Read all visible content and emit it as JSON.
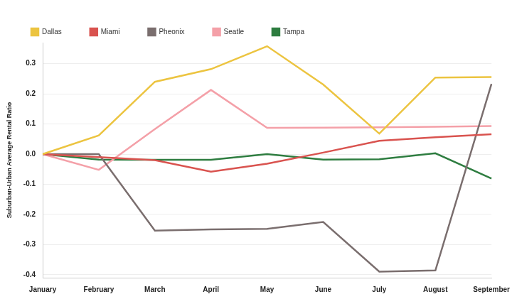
{
  "chart_data": {
    "type": "line",
    "y_label": "Suburban-Urban Average Rental Ratio",
    "categories": [
      "January",
      "February",
      "March",
      "April",
      "May",
      "June",
      "July",
      "August",
      "September"
    ],
    "series": [
      {
        "name": "Dallas",
        "color": "#ecc440",
        "values": [
          0,
          0.062,
          0.24,
          0.282,
          0.358,
          0.231,
          0.068,
          0.254,
          0.256
        ]
      },
      {
        "name": "Miami",
        "color": "#d9534f",
        "values": [
          0,
          -0.01,
          -0.02,
          -0.058,
          -0.032,
          0.005,
          0.044,
          0.056,
          0.066
        ]
      },
      {
        "name": "Pheonix",
        "color": "#7a6e6e",
        "values": [
          0,
          0,
          -0.254,
          -0.25,
          -0.248,
          -0.225,
          -0.39,
          -0.386,
          0.233
        ]
      },
      {
        "name": "Seatle",
        "color": "#f4a0a8",
        "values": [
          0,
          -0.052,
          0.083,
          0.213,
          0.087,
          0.088,
          0.089,
          0.091,
          0.093
        ]
      },
      {
        "name": "Tampa",
        "color": "#2e7d40",
        "values": [
          0,
          -0.018,
          -0.019,
          -0.019,
          0,
          -0.018,
          -0.017,
          0.003,
          -0.081
        ]
      }
    ],
    "ylim": [
      -0.41,
      0.37
    ],
    "yticks": [
      -0.4,
      -0.3,
      -0.2,
      -0.1,
      {
        "value": 0,
        "label": "0.0"
      },
      0.1,
      0.2,
      0.3
    ],
    "grid": true,
    "legend": "top-left"
  }
}
